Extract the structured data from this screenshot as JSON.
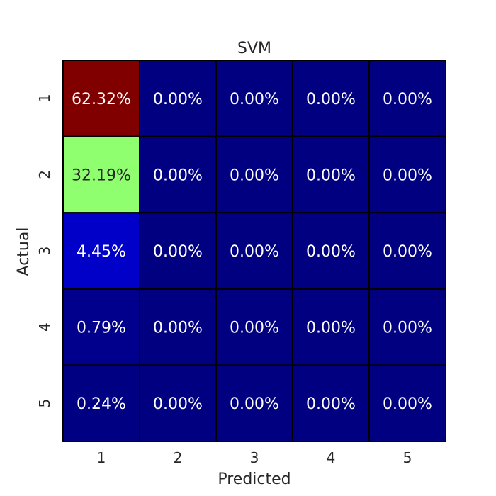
{
  "chart_data": {
    "type": "heatmap",
    "title": "SVM",
    "xlabel": "Predicted",
    "ylabel": "Actual",
    "x_categories": [
      "1",
      "2",
      "3",
      "4",
      "5"
    ],
    "y_categories": [
      "1",
      "2",
      "3",
      "4",
      "5"
    ],
    "values": [
      [
        62.32,
        0.0,
        0.0,
        0.0,
        0.0
      ],
      [
        32.19,
        0.0,
        0.0,
        0.0,
        0.0
      ],
      [
        4.45,
        0.0,
        0.0,
        0.0,
        0.0
      ],
      [
        0.79,
        0.0,
        0.0,
        0.0,
        0.0
      ],
      [
        0.24,
        0.0,
        0.0,
        0.0,
        0.0
      ]
    ],
    "cell_labels": [
      [
        "62.32%",
        "0.00%",
        "0.00%",
        "0.00%",
        "0.00%"
      ],
      [
        "32.19%",
        "0.00%",
        "0.00%",
        "0.00%",
        "0.00%"
      ],
      [
        "4.45%",
        "0.00%",
        "0.00%",
        "0.00%",
        "0.00%"
      ],
      [
        "0.79%",
        "0.00%",
        "0.00%",
        "0.00%",
        "0.00%"
      ],
      [
        "0.24%",
        "0.00%",
        "0.00%",
        "0.00%",
        "0.00%"
      ]
    ],
    "colormap": "jet",
    "colorbar": false,
    "value_range": [
      0,
      62.32
    ]
  }
}
